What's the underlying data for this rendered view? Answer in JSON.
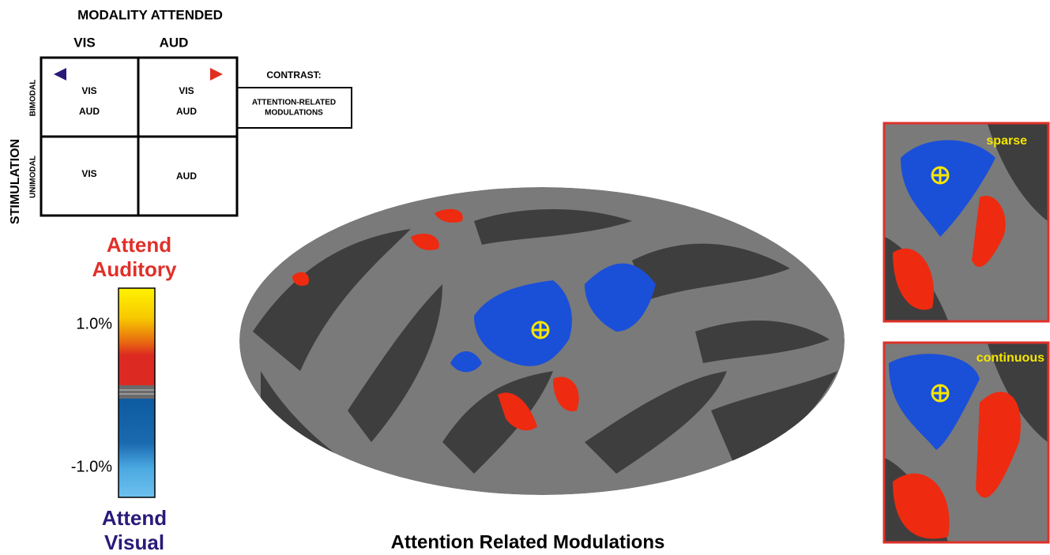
{
  "design": {
    "title": "MODALITY ATTENDED",
    "columns": [
      "VIS",
      "AUD"
    ],
    "row_title": "STIMULATION",
    "rows": [
      "BIMODAL",
      "UNIMODAL"
    ],
    "cells": [
      [
        [
          "VIS",
          "AUD"
        ],
        [
          "VIS",
          "AUD"
        ]
      ],
      [
        [
          "VIS"
        ],
        [
          "AUD"
        ]
      ]
    ]
  },
  "contrast": {
    "label": "CONTRAST:",
    "box": [
      "ATTENTION-RELATED",
      "MODULATIONS"
    ]
  },
  "colorbar": {
    "top_label": [
      "Attend",
      "Auditory"
    ],
    "ticks": [
      "1.0%",
      "-1.0%"
    ],
    "bottom_label": [
      "Attend",
      "Visual"
    ]
  },
  "map": {
    "title": "Attention Related Modulations"
  },
  "insets": [
    "sparse",
    "continuous"
  ]
}
